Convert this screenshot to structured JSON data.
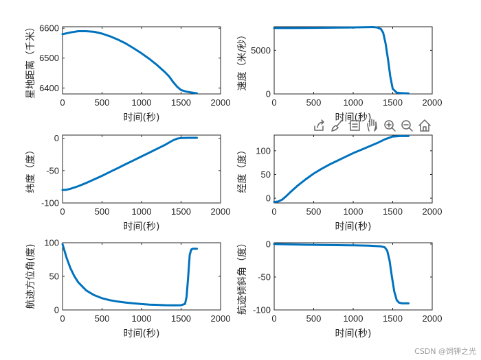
{
  "watermark": "CSDN @饲钾之光",
  "colors": {
    "series": "#0072bd",
    "axis": "#262626"
  },
  "toolbar": [
    "export-icon",
    "brush-icon",
    "data-tips-icon",
    "pan-icon",
    "zoom-in-icon",
    "zoom-out-icon",
    "home-icon"
  ],
  "chart_data": [
    {
      "type": "line",
      "xlabel": "时间(秒)",
      "ylabel": "星地距离（千米）",
      "xlim": [
        0,
        2000
      ],
      "ylim": [
        6380,
        6605
      ],
      "xticks": [
        0,
        500,
        1000,
        1500,
        2000
      ],
      "yticks": [
        6400,
        6500,
        6600
      ],
      "grid": false,
      "series": [
        {
          "x": [
            0,
            100,
            200,
            300,
            400,
            500,
            600,
            700,
            800,
            900,
            1000,
            1100,
            1200,
            1300,
            1350,
            1400,
            1450,
            1500,
            1550,
            1600,
            1700
          ],
          "y": [
            6580,
            6586,
            6590,
            6590,
            6588,
            6582,
            6573,
            6562,
            6549,
            6533,
            6516,
            6497,
            6476,
            6452,
            6438,
            6420,
            6404,
            6393,
            6389,
            6386,
            6382
          ]
        }
      ]
    },
    {
      "type": "line",
      "xlabel": "时间(秒)",
      "ylabel": "速度（米/秒）",
      "xlim": [
        0,
        2000
      ],
      "ylim": [
        0,
        7700
      ],
      "xticks": [
        0,
        500,
        1000,
        1500,
        2000
      ],
      "yticks": [
        0,
        5000
      ],
      "grid": false,
      "series": [
        {
          "x": [
            0,
            200,
            400,
            600,
            800,
            1000,
            1200,
            1250,
            1300,
            1350,
            1380,
            1410,
            1440,
            1470,
            1500,
            1550,
            1600,
            1700
          ],
          "y": [
            7550,
            7550,
            7560,
            7580,
            7600,
            7620,
            7650,
            7660,
            7620,
            7450,
            7000,
            5800,
            4000,
            2000,
            600,
            150,
            100,
            60
          ]
        }
      ]
    },
    {
      "type": "line",
      "xlabel": "时间(秒)",
      "ylabel": "纬度（度）",
      "xlim": [
        0,
        2000
      ],
      "ylim": [
        -100,
        5
      ],
      "xticks": [
        0,
        500,
        1000,
        1500,
        2000
      ],
      "yticks": [
        -100,
        -50,
        0
      ],
      "grid": false,
      "series": [
        {
          "x": [
            0,
            50,
            100,
            200,
            300,
            400,
            500,
            600,
            700,
            800,
            900,
            1000,
            1100,
            1200,
            1300,
            1400,
            1450,
            1500,
            1600,
            1700
          ],
          "y": [
            -80,
            -79.5,
            -78,
            -74,
            -69,
            -63.5,
            -58,
            -52,
            -46,
            -40,
            -34,
            -28,
            -22,
            -16,
            -10,
            -3,
            -0.5,
            0.5,
            0.8,
            0.8
          ]
        }
      ]
    },
    {
      "type": "line",
      "xlabel": "时间(秒)",
      "ylabel": "经度（度）",
      "xlim": [
        0,
        2000
      ],
      "ylim": [
        -10,
        133
      ],
      "xticks": [
        0,
        500,
        1000,
        1500,
        2000
      ],
      "yticks": [
        0,
        50,
        100
      ],
      "grid": false,
      "series": [
        {
          "x": [
            0,
            50,
            100,
            150,
            200,
            300,
            400,
            500,
            600,
            700,
            800,
            900,
            1000,
            1100,
            1200,
            1300,
            1400,
            1500,
            1600,
            1700
          ],
          "y": [
            -8,
            -7,
            -3,
            4,
            12,
            27,
            40,
            52,
            62,
            71,
            79,
            87,
            95,
            102,
            109,
            116,
            124,
            130,
            131,
            131
          ]
        }
      ]
    },
    {
      "type": "line",
      "xlabel": "时间(秒)",
      "ylabel": "航迹方位角(度)",
      "xlim": [
        0,
        2000
      ],
      "ylim": [
        0,
        100
      ],
      "xticks": [
        0,
        500,
        1000,
        1500,
        2000
      ],
      "yticks": [
        0,
        50,
        100
      ],
      "grid": false,
      "series": [
        {
          "x": [
            0,
            20,
            50,
            100,
            150,
            200,
            300,
            400,
            500,
            600,
            700,
            800,
            900,
            1000,
            1100,
            1200,
            1300,
            1400,
            1500,
            1550,
            1570,
            1590,
            1610,
            1630,
            1650,
            1700
          ],
          "y": [
            98,
            90,
            78,
            62,
            50,
            41,
            29,
            22,
            17.5,
            14.5,
            12.5,
            11,
            9.8,
            8.8,
            8,
            7.5,
            7,
            6.8,
            7,
            9,
            20,
            50,
            82,
            90,
            91,
            91
          ]
        }
      ]
    },
    {
      "type": "line",
      "xlabel": "时间(秒)",
      "ylabel": "航迹倾斜角（度）",
      "xlim": [
        0,
        2000
      ],
      "ylim": [
        -100,
        2
      ],
      "xticks": [
        0,
        500,
        1000,
        1500,
        2000
      ],
      "yticks": [
        -100,
        -50,
        0
      ],
      "grid": false,
      "series": [
        {
          "x": [
            0,
            200,
            400,
            600,
            800,
            1000,
            1200,
            1350,
            1400,
            1430,
            1460,
            1490,
            1520,
            1550,
            1580,
            1620,
            1700
          ],
          "y": [
            0,
            -0.5,
            -1,
            -1.3,
            -1.6,
            -2,
            -2.5,
            -3.5,
            -5,
            -10,
            -25,
            -50,
            -72,
            -85,
            -89,
            -90,
            -90
          ]
        }
      ]
    }
  ]
}
